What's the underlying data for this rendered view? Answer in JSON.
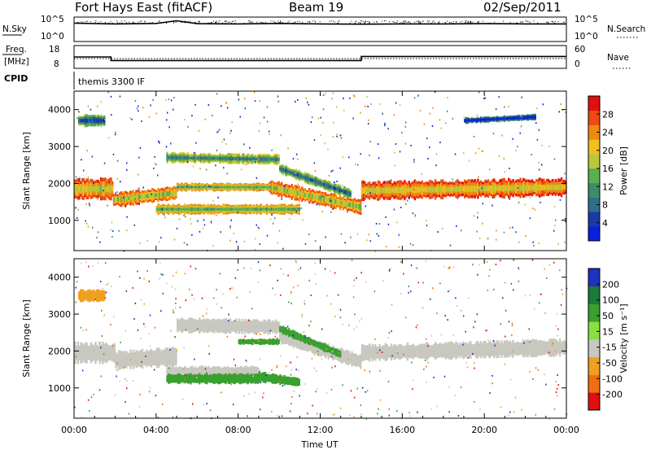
{
  "header": {
    "station": "Fort Hays East (fitACF)",
    "beam": "Beam 19",
    "date": "02/Sep/2011"
  },
  "top_panel": {
    "left_label": "N.Sky",
    "right_label": "N.Search",
    "left_ticks": [
      "10^5",
      "10^0"
    ],
    "right_ticks": [
      "10^5",
      "10^0"
    ]
  },
  "freq_panel": {
    "left_label_1": "Freq.",
    "left_label_2": "[MHz]",
    "right_label": "Nave",
    "left_ticks": [
      "18",
      "8"
    ],
    "right_ticks": [
      "60",
      "0"
    ],
    "cpid_label": "CPID",
    "cpid_text": "themis 3300 IF"
  },
  "power_panel": {
    "ylabel": "Slant Range [km]",
    "yticks": [
      "1000",
      "2000",
      "3000",
      "4000"
    ],
    "colorbar_label": "Power [dB]",
    "colorbar_ticks": [
      "4",
      "8",
      "12",
      "16",
      "20",
      "24",
      "28"
    ]
  },
  "velocity_panel": {
    "ylabel": "Slant Range [km]",
    "yticks": [
      "1000",
      "2000",
      "3000",
      "4000"
    ],
    "colorbar_label": "Velocity [m s⁻¹]",
    "colorbar_ticks": [
      "200",
      "100",
      "50",
      "15",
      "-15",
      "-50",
      "-100",
      "-200"
    ]
  },
  "xaxis": {
    "label": "Time UT",
    "ticks": [
      "00:00",
      "04:00",
      "08:00",
      "12:00",
      "16:00",
      "20:00",
      "00:00"
    ]
  },
  "colors": {
    "power_scale": [
      "#0a1fe0",
      "#1a3aa8",
      "#2e6e8a",
      "#3c8e6a",
      "#58b050",
      "#b8c83a",
      "#f0c020",
      "#f08a10",
      "#f04a10",
      "#e01010"
    ],
    "velocity_scale": [
      "#2030c0",
      "#1a7a3a",
      "#3aa030",
      "#8ae040",
      "#c8c8c0",
      "#f0a020",
      "#f07010",
      "#e01010"
    ]
  },
  "chart_data": [
    {
      "type": "line",
      "title": "N.Sky / N.Search",
      "x_range_hours": [
        0,
        24
      ],
      "series": [
        {
          "name": "N.Sky",
          "x": [
            0,
            2,
            4,
            5,
            6,
            8,
            10,
            12,
            14,
            16,
            18,
            20,
            22,
            24
          ],
          "y": [
            0.75,
            0.72,
            0.74,
            0.85,
            0.73,
            0.72,
            0.74,
            0.72,
            0.71,
            0.72,
            0.72,
            0.73,
            0.72,
            0.72
          ]
        }
      ]
    },
    {
      "type": "line",
      "title": "Freq / Nave",
      "x_range_hours": [
        0,
        24
      ],
      "series": [
        {
          "name": "Freq.",
          "x": [
            0,
            1.8,
            1.8,
            14,
            14,
            24
          ],
          "y": [
            13,
            13,
            10.8,
            10.8,
            13.3,
            13.3
          ]
        },
        {
          "name": "Nave",
          "x": [
            0,
            24
          ],
          "y": [
            12,
            12
          ]
        }
      ]
    },
    {
      "type": "heatmap",
      "title": "Power [dB]",
      "xlabel": "Time UT",
      "ylabel": "Slant Range [km]",
      "x_range_hours": [
        0,
        24
      ],
      "ylim": [
        180,
        4500
      ],
      "zlim": [
        0,
        30
      ],
      "bands": [
        {
          "x": [
            0.0,
            1.9
          ],
          "y_center": [
            1850,
            1850
          ],
          "width": 500,
          "value": 26
        },
        {
          "x": [
            1.9,
            5.0
          ],
          "y_center": [
            1550,
            1750
          ],
          "width": 350,
          "value": 25
        },
        {
          "x": [
            5.0,
            9.5
          ],
          "y_center": [
            1900,
            1900
          ],
          "width": 200,
          "value": 22
        },
        {
          "x": [
            9.5,
            14.0
          ],
          "y_center": [
            1900,
            1350
          ],
          "width": 350,
          "value": 25
        },
        {
          "x": [
            14.0,
            24.0
          ],
          "y_center": [
            1800,
            1900
          ],
          "width": 450,
          "value": 27
        },
        {
          "x": [
            4.0,
            11.0
          ],
          "y_center": [
            1300,
            1300
          ],
          "width": 250,
          "value": 22
        },
        {
          "x": [
            4.5,
            10.0
          ],
          "y_center": [
            2700,
            2650
          ],
          "width": 250,
          "value": 18
        },
        {
          "x": [
            10.0,
            13.5
          ],
          "y_center": [
            2400,
            1700
          ],
          "width": 250,
          "value": 16
        },
        {
          "x": [
            0.2,
            1.5
          ],
          "y_center": [
            3700,
            3700
          ],
          "width": 300,
          "value": 14
        },
        {
          "x": [
            19.0,
            22.5
          ],
          "y_center": [
            3700,
            3800
          ],
          "width": 150,
          "value": 10
        }
      ]
    },
    {
      "type": "heatmap",
      "title": "Velocity [m s⁻¹]",
      "xlabel": "Time UT",
      "ylabel": "Slant Range [km]",
      "x_range_hours": [
        0,
        24
      ],
      "ylim": [
        180,
        4500
      ],
      "zlim": [
        -200,
        200
      ],
      "bands": [
        {
          "x": [
            0.0,
            2.0
          ],
          "y_center": [
            1950,
            1950
          ],
          "width": 500,
          "value": 0
        },
        {
          "x": [
            2.0,
            5.0
          ],
          "y_center": [
            1750,
            1850
          ],
          "width": 450,
          "value": 0
        },
        {
          "x": [
            5.0,
            10.0
          ],
          "y_center": [
            2700,
            2650
          ],
          "width": 350,
          "value": 0
        },
        {
          "x": [
            10.0,
            14.0
          ],
          "y_center": [
            2400,
            1700
          ],
          "width": 350,
          "value": 0
        },
        {
          "x": [
            14.0,
            24.0
          ],
          "y_center": [
            1950,
            2100
          ],
          "width": 400,
          "value": 0
        },
        {
          "x": [
            4.5,
            9.0
          ],
          "y_center": [
            1450,
            1450
          ],
          "width": 250,
          "value": 0
        },
        {
          "x": [
            4.5,
            9.0
          ],
          "y_center": [
            1250,
            1250
          ],
          "width": 250,
          "value": 30
        },
        {
          "x": [
            9.0,
            11.0
          ],
          "y_center": [
            1300,
            1150
          ],
          "width": 250,
          "value": 30
        },
        {
          "x": [
            8.0,
            10.0
          ],
          "y_center": [
            2250,
            2250
          ],
          "width": 150,
          "value": 30
        },
        {
          "x": [
            10.0,
            13.0
          ],
          "y_center": [
            2600,
            1900
          ],
          "width": 200,
          "value": 30
        },
        {
          "x": [
            0.2,
            1.5
          ],
          "y_center": [
            3500,
            3500
          ],
          "width": 300,
          "value": -20
        }
      ]
    }
  ]
}
